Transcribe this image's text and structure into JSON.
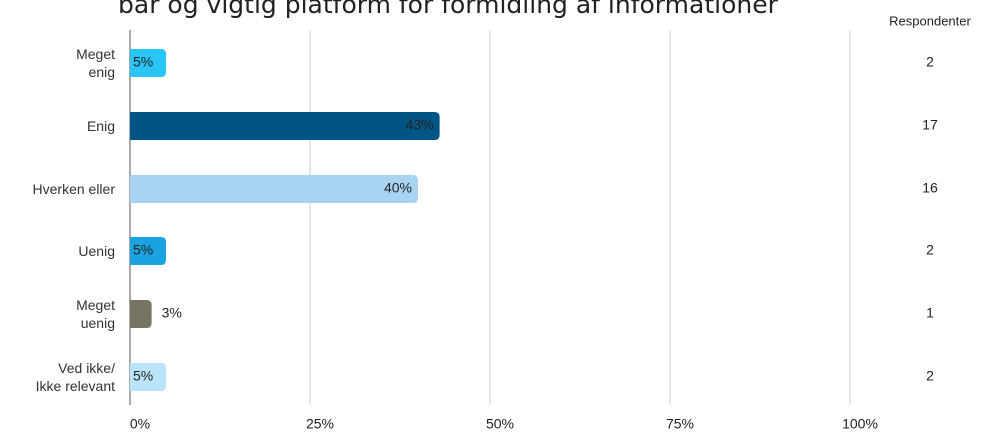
{
  "chart_data": {
    "type": "hbar",
    "title": "bar og vigtig platform for formidling af informationer",
    "categories": [
      "Meget\nenig",
      "Enig",
      "Hverken eller",
      "Uenig",
      "Meget\nuenig",
      "Ved ikke/\nIkke relevant"
    ],
    "values": [
      5,
      43,
      40,
      5,
      3,
      5
    ],
    "value_labels": [
      "5%",
      "43%",
      "40%",
      "5%",
      "3%",
      "5%"
    ],
    "colors": [
      "#29c5f6",
      "#005587",
      "#a8d4f2",
      "#1aa3e0",
      "#777463",
      "#b9e4fa"
    ],
    "xlim": [
      0,
      100
    ],
    "xticks": [
      {
        "value": 0,
        "label": "0%"
      },
      {
        "value": 25,
        "label": "25%"
      },
      {
        "value": 50,
        "label": "50%"
      },
      {
        "value": 75,
        "label": "75%"
      },
      {
        "value": 100,
        "label": "100%"
      }
    ],
    "grid": true,
    "respondents": {
      "label": "Respondenter",
      "values": [
        2,
        17,
        16,
        2,
        1,
        2
      ]
    }
  }
}
